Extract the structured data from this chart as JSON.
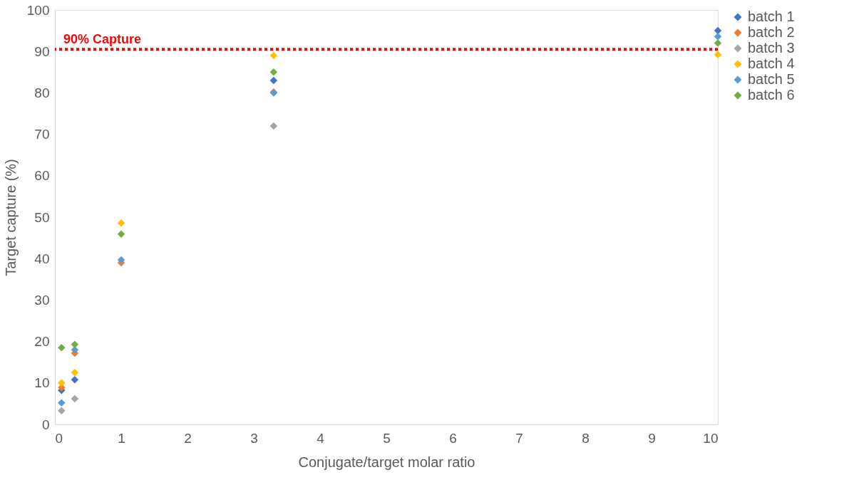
{
  "chart_data": {
    "type": "scatter",
    "xlabel": "Conjugate/target molar ratio",
    "ylabel": "Target capture (%)",
    "x": [
      0.1,
      0.3,
      1,
      3.3,
      10
    ],
    "series": [
      {
        "name": "batch 1",
        "color": "#4472c4",
        "values": [
          8.2,
          10.8,
          null,
          83,
          95
        ]
      },
      {
        "name": "batch 2",
        "color": "#ed7d31",
        "values": [
          8.9,
          17.2,
          39,
          80.2,
          null
        ]
      },
      {
        "name": "batch 3",
        "color": "#a5a5a5",
        "values": [
          3.3,
          6.2,
          null,
          72,
          null
        ]
      },
      {
        "name": "batch 4",
        "color": "#ffc000",
        "values": [
          10,
          12.5,
          48.6,
          89,
          89.2
        ]
      },
      {
        "name": "batch 5",
        "color": "#5b9bd5",
        "values": [
          5.2,
          18,
          39.7,
          80,
          93.6
        ]
      },
      {
        "name": "batch 6",
        "color": "#70ad47",
        "values": [
          18.5,
          19.3,
          45.9,
          85,
          92
        ]
      }
    ],
    "xlim": [
      0,
      10
    ],
    "xticks": [
      0,
      1,
      2,
      3,
      4,
      5,
      6,
      7,
      8,
      9,
      10
    ],
    "ylim": [
      0,
      100
    ],
    "yticks": [
      0,
      10,
      20,
      30,
      40,
      50,
      60,
      70,
      80,
      90,
      100
    ],
    "ref_lines": [
      {
        "axis": "y",
        "value": 90.5,
        "label": "90% Capture",
        "color": "#ff0000",
        "line_style": "dotted"
      }
    ],
    "grid": false,
    "legend": "right",
    "marker": "diamond"
  }
}
